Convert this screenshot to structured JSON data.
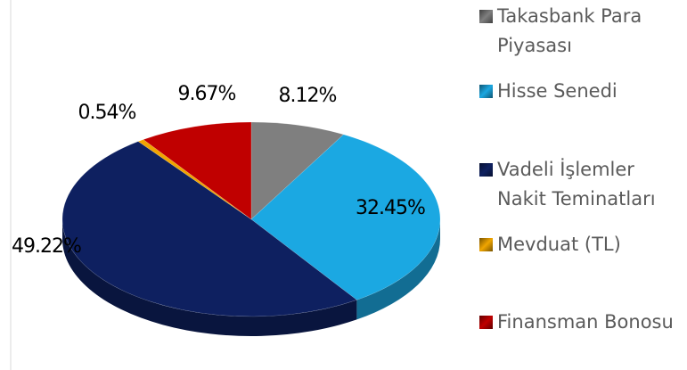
{
  "chart_data": {
    "type": "pie",
    "categories": [
      "Takasbank Para Piyasası",
      "Hisse Senedi",
      "Vadeli İşlemler Nakit Teminatları",
      "Mevduat (TL)",
      "Finansman Bonosu"
    ],
    "values": [
      8.12,
      32.45,
      49.22,
      0.54,
      9.67
    ],
    "value_labels": [
      "8.12%",
      "32.45%",
      "49.22%",
      "0.54%",
      "9.67%"
    ],
    "colors": [
      "#7f7f7f",
      "#1ba8e2",
      "#0e2060",
      "#f0a500",
      "#c00000"
    ],
    "legend": "right"
  }
}
